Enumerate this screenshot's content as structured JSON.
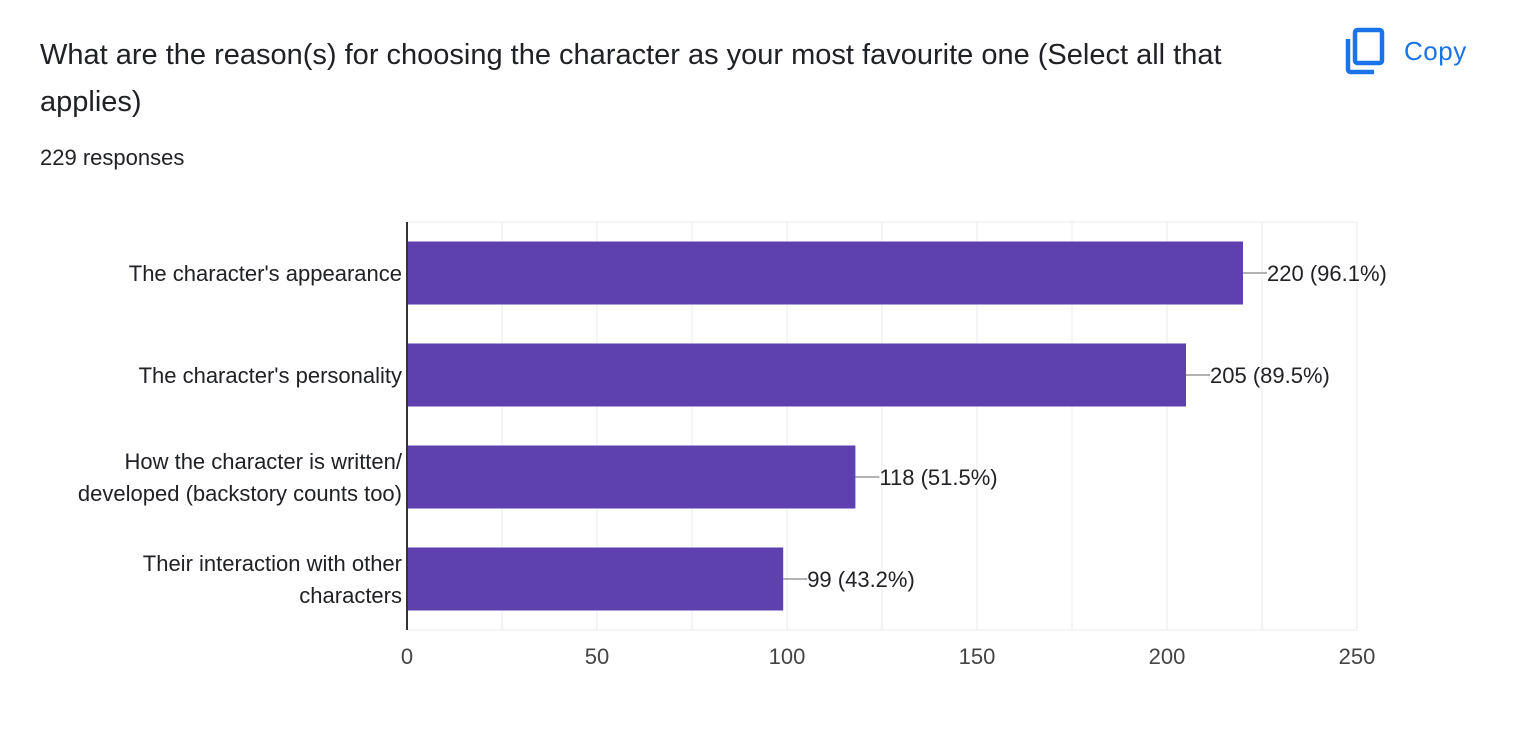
{
  "question": {
    "title": "What are the reason(s) for choosing the character as your most favourite one (Select all that applies)",
    "response_count": "229 responses"
  },
  "copy_button": {
    "label": "Copy",
    "icon": "copy-icon",
    "color": "#1a73e8"
  },
  "colors": {
    "bar": "#5e41af",
    "grid": "#ebebeb",
    "axis": "#333333",
    "leader": "#999999"
  },
  "chart_data": {
    "type": "bar",
    "orientation": "horizontal",
    "title": "",
    "xlabel": "",
    "ylabel": "",
    "categories": [
      [
        "The character's appearance"
      ],
      [
        "The character's personality"
      ],
      [
        "How the character is written/",
        "developed (backstory counts too)"
      ],
      [
        "Their interaction with other",
        "characters"
      ]
    ],
    "values": [
      220,
      205,
      118,
      99
    ],
    "data_labels": [
      "220 (96.1%)",
      "205 (89.5%)",
      "118 (51.5%)",
      "99 (43.2%)"
    ],
    "xlim": [
      0,
      250
    ],
    "xticks": [
      0,
      50,
      100,
      150,
      200,
      250
    ],
    "xtick_labels": [
      "0",
      "50",
      "100",
      "150",
      "200",
      "250"
    ],
    "grid": true
  }
}
